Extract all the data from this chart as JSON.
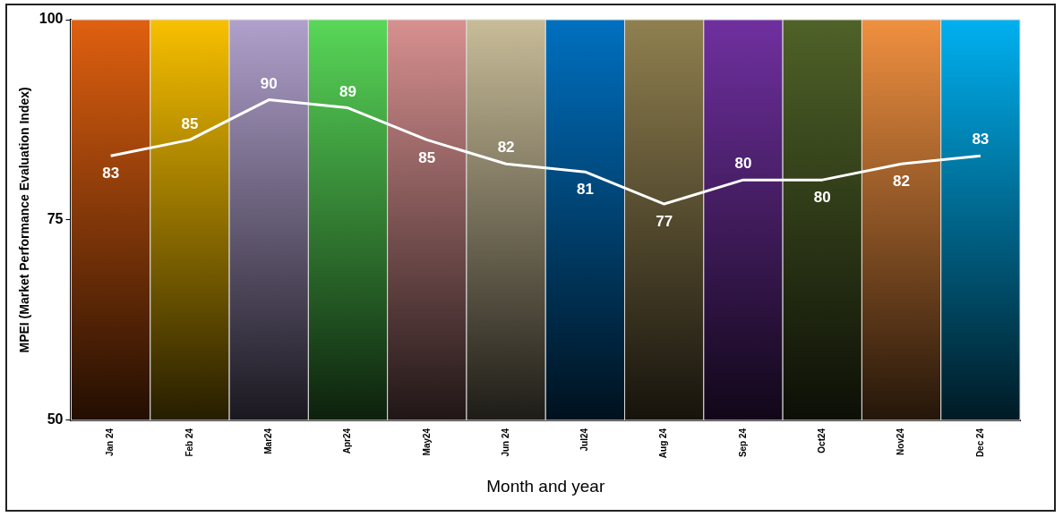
{
  "chart_data": {
    "type": "line",
    "xlabel": "Month and year",
    "ylabel": "MPEI (Market Performance Evaluation Index)",
    "categories": [
      "Jan 24",
      "Feb 24",
      "Mar24",
      "Apr24",
      "May24",
      "Jun 24",
      "Jul24",
      "Aug 24",
      "Sep 24",
      "Oct24",
      "Nov24",
      "Dec 24"
    ],
    "series": [
      {
        "color": "#ffffff",
        "values": [
          83,
          85,
          90,
          89,
          85,
          82,
          81,
          77,
          80,
          80,
          82,
          83
        ]
      }
    ],
    "data_labels": true,
    "marker": "none",
    "grid": false,
    "legend": false,
    "ylim": [
      50,
      100
    ],
    "yticks": [
      50,
      75,
      100
    ],
    "bands": [
      {
        "axis": "x",
        "from": "Jan 24",
        "to": "Jan 24",
        "color": "#e06010"
      },
      {
        "axis": "x",
        "from": "Feb 24",
        "to": "Feb 24",
        "color": "#f8c000"
      },
      {
        "axis": "x",
        "from": "Mar24",
        "to": "Mar24",
        "color": "#b0a0cc"
      },
      {
        "axis": "x",
        "from": "Apr24",
        "to": "Apr24",
        "color": "#58d858"
      },
      {
        "axis": "x",
        "from": "May24",
        "to": "May24",
        "color": "#d89090"
      },
      {
        "axis": "x",
        "from": "Jun 24",
        "to": "Jun 24",
        "color": "#c8bc98"
      },
      {
        "axis": "x",
        "from": "Jul24",
        "to": "Jul24",
        "color": "#0070c0"
      },
      {
        "axis": "x",
        "from": "Aug 24",
        "to": "Aug 24",
        "color": "#908050"
      },
      {
        "axis": "x",
        "from": "Sep 24",
        "to": "Sep 24",
        "color": "#7030a0"
      },
      {
        "axis": "x",
        "from": "Oct24",
        "to": "Oct24",
        "color": "#4f6228"
      },
      {
        "axis": "x",
        "from": "Nov24",
        "to": "Nov24",
        "color": "#f09040"
      },
      {
        "axis": "x",
        "from": "Dec 24",
        "to": "Dec 24",
        "color": "#00b0f0"
      }
    ]
  }
}
